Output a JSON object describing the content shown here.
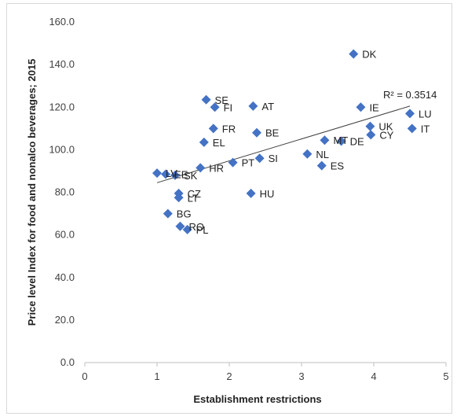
{
  "chart_data": {
    "type": "scatter",
    "title": "",
    "xlabel": "Establishment restrictions",
    "ylabel": "Price level Index for food and nonalco beverages; 2015",
    "xlim": [
      0,
      5
    ],
    "ylim": [
      0,
      160
    ],
    "x_ticks": [
      "0",
      "1",
      "2",
      "3",
      "4",
      "5"
    ],
    "y_ticks": [
      "0.0",
      "20.0",
      "40.0",
      "60.0",
      "80.0",
      "100.0",
      "120.0",
      "140.0",
      "160.0"
    ],
    "grid": false,
    "legend": "none",
    "marker_color": "#4472c4",
    "trendline": {
      "label": "R² = 0.3514",
      "start": [
        1.0,
        84.5
      ],
      "end": [
        4.5,
        120.5
      ]
    },
    "points": [
      {
        "label": "DK",
        "x": 3.72,
        "y": 145.0
      },
      {
        "label": "SE",
        "x": 1.68,
        "y": 123.5
      },
      {
        "label": "FI",
        "x": 1.8,
        "y": 120.0
      },
      {
        "label": "AT",
        "x": 2.33,
        "y": 120.5
      },
      {
        "label": "IE",
        "x": 3.82,
        "y": 120.0
      },
      {
        "label": "LU",
        "x": 4.5,
        "y": 117.0
      },
      {
        "label": "UK",
        "x": 3.95,
        "y": 111.0
      },
      {
        "label": "IT",
        "x": 4.53,
        "y": 110.0
      },
      {
        "label": "FR",
        "x": 1.78,
        "y": 110.0
      },
      {
        "label": "BE",
        "x": 2.38,
        "y": 108.0
      },
      {
        "label": "CY",
        "x": 3.96,
        "y": 107.0
      },
      {
        "label": "MT",
        "x": 3.32,
        "y": 104.5
      },
      {
        "label": "DE",
        "x": 3.55,
        "y": 104.0
      },
      {
        "label": "EL",
        "x": 1.65,
        "y": 103.5
      },
      {
        "label": "NL",
        "x": 3.08,
        "y": 98.0
      },
      {
        "label": "SI",
        "x": 2.42,
        "y": 96.0
      },
      {
        "label": "PT",
        "x": 2.05,
        "y": 94.0
      },
      {
        "label": "ES",
        "x": 3.28,
        "y": 92.5
      },
      {
        "label": "HR",
        "x": 1.6,
        "y": 91.5
      },
      {
        "label": "LV",
        "x": 1.0,
        "y": 89.0
      },
      {
        "label": "EE",
        "x": 1.12,
        "y": 88.5
      },
      {
        "label": "SK",
        "x": 1.25,
        "y": 88.0
      },
      {
        "label": "HU",
        "x": 2.3,
        "y": 79.5
      },
      {
        "label": "CZ",
        "x": 1.3,
        "y": 79.5
      },
      {
        "label": "LT",
        "x": 1.3,
        "y": 77.5
      },
      {
        "label": "BG",
        "x": 1.15,
        "y": 70.0
      },
      {
        "label": "RO",
        "x": 1.32,
        "y": 64.0
      },
      {
        "label": "PL",
        "x": 1.42,
        "y": 62.5
      }
    ]
  }
}
